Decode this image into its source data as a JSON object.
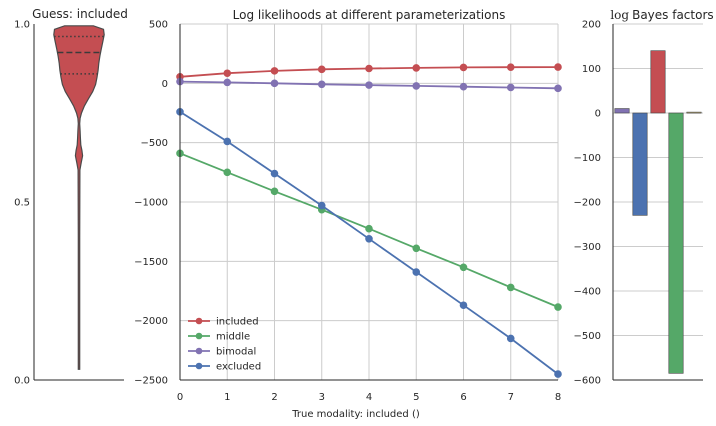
{
  "chart_data": [
    {
      "type": "violin",
      "title": "Guess: included",
      "xlabel": "",
      "ylabel": "",
      "ylim": [
        0,
        1
      ],
      "yticks": [
        "0.0",
        "0.5",
        "1.0"
      ],
      "quartiles": {
        "q1": 0.86,
        "median": 0.92,
        "q3": 0.965
      },
      "data_range": [
        0.03,
        0.995
      ],
      "profile": [
        {
          "y": 0.03,
          "w": 0.02
        },
        {
          "y": 0.2,
          "w": 0.02
        },
        {
          "y": 0.4,
          "w": 0.02
        },
        {
          "y": 0.59,
          "w": 0.025
        },
        {
          "y": 0.61,
          "w": 0.06
        },
        {
          "y": 0.63,
          "w": 0.1
        },
        {
          "y": 0.645,
          "w": 0.08
        },
        {
          "y": 0.66,
          "w": 0.05
        },
        {
          "y": 0.68,
          "w": 0.04
        },
        {
          "y": 0.7,
          "w": 0.03
        },
        {
          "y": 0.72,
          "w": 0.02
        },
        {
          "y": 0.735,
          "w": 0.03
        },
        {
          "y": 0.75,
          "w": 0.07
        },
        {
          "y": 0.77,
          "w": 0.15
        },
        {
          "y": 0.79,
          "w": 0.26
        },
        {
          "y": 0.81,
          "w": 0.38
        },
        {
          "y": 0.83,
          "w": 0.46
        },
        {
          "y": 0.85,
          "w": 0.5
        },
        {
          "y": 0.87,
          "w": 0.53
        },
        {
          "y": 0.89,
          "w": 0.55
        },
        {
          "y": 0.91,
          "w": 0.58
        },
        {
          "y": 0.93,
          "w": 0.62
        },
        {
          "y": 0.95,
          "w": 0.66
        },
        {
          "y": 0.97,
          "w": 0.7
        },
        {
          "y": 0.985,
          "w": 0.68
        },
        {
          "y": 0.995,
          "w": 0.4
        }
      ],
      "color": "#c44e52"
    },
    {
      "type": "line",
      "title": "Log likelihoods at different parameterizations",
      "xlabel": "True modality: included ()",
      "ylabel": "",
      "xlim": [
        0,
        8
      ],
      "ylim": [
        -2500,
        500
      ],
      "xticks": [
        "0",
        "1",
        "2",
        "3",
        "4",
        "5",
        "6",
        "7",
        "8"
      ],
      "yticks": [
        "−2500",
        "−2000",
        "−1500",
        "−1000",
        "−500",
        "0",
        "500"
      ],
      "grid": true,
      "legend_position": "lower-left",
      "x": [
        0,
        1,
        2,
        3,
        4,
        5,
        6,
        7,
        8
      ],
      "series": [
        {
          "name": "included",
          "color": "#c44e52",
          "values": [
            55,
            85,
            105,
            118,
            125,
            130,
            134,
            136,
            137
          ]
        },
        {
          "name": "middle",
          "color": "#55a868",
          "values": [
            -590,
            -750,
            -910,
            -1065,
            -1225,
            -1390,
            -1550,
            -1720,
            -1885
          ]
        },
        {
          "name": "bimodal",
          "color": "#8172b2",
          "values": [
            15,
            8,
            0,
            -8,
            -15,
            -22,
            -28,
            -35,
            -42
          ]
        },
        {
          "name": "excluded",
          "color": "#4c72b0",
          "values": [
            -240,
            -490,
            -760,
            -1030,
            -1310,
            -1590,
            -1870,
            -2150,
            -2450
          ]
        }
      ]
    },
    {
      "type": "bar",
      "title": "Bayes factors",
      "title_prefix": "log",
      "xlabel": "",
      "ylabel": "",
      "ylim": [
        -600,
        200
      ],
      "yticks": [
        "−600",
        "−500",
        "−400",
        "−300",
        "−200",
        "−100",
        "0",
        "100",
        "200"
      ],
      "grid": true,
      "values": [
        10,
        -230,
        140,
        -585,
        2
      ],
      "colors": [
        "#8172b2",
        "#4c72b0",
        "#c44e52",
        "#55a868",
        "#ccb974"
      ]
    }
  ]
}
